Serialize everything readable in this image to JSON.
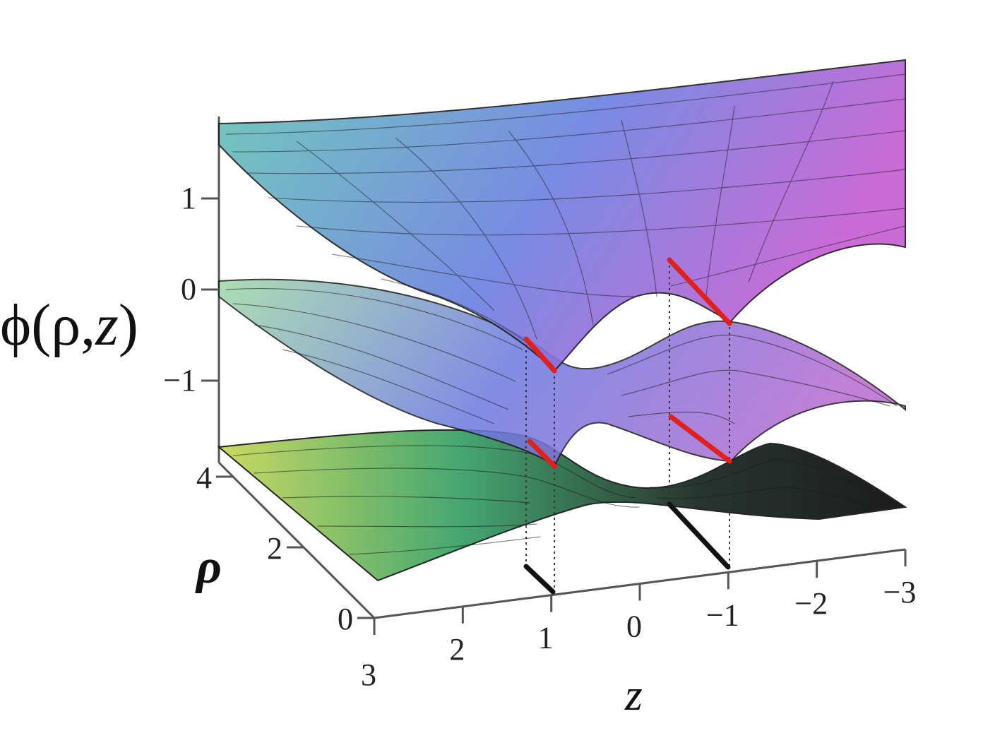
{
  "chart_data": {
    "type": "surface3d",
    "axes": {
      "z_axis": {
        "label": "z",
        "ticks": [
          "3",
          "2",
          "1",
          "0",
          "−1",
          "−2",
          "−3"
        ],
        "range": [
          3,
          -3
        ]
      },
      "rho_axis": {
        "label": "ρ",
        "ticks": [
          "0",
          "2",
          "4"
        ],
        "range": [
          0,
          4
        ]
      },
      "phi_axis": {
        "label_prefix": "ϕ(ρ,",
        "label_var": "z",
        "label_suffix": ")",
        "ticks": [
          "1",
          "0",
          "−1"
        ],
        "range": [
          -1.9,
          1.9
        ]
      }
    },
    "surfaces": [
      {
        "sheet": "upper",
        "colors": [
          "#63c6b4",
          "#6a7fe0",
          "#c65bd2"
        ]
      },
      {
        "sheet": "middle",
        "colors": [
          "#9fd8a6",
          "#6c78e0",
          "#b86bd0"
        ]
      },
      {
        "sheet": "lower",
        "colors": [
          "#c8d85a",
          "#3ca36a",
          "#111111"
        ]
      }
    ],
    "markers": {
      "red_segments_z": [
        1,
        -1
      ],
      "black_segments_z": [
        1,
        -1
      ],
      "colors": {
        "red": "#e0201c",
        "black": "#111111",
        "mesh": "#1a1a1a"
      }
    }
  }
}
